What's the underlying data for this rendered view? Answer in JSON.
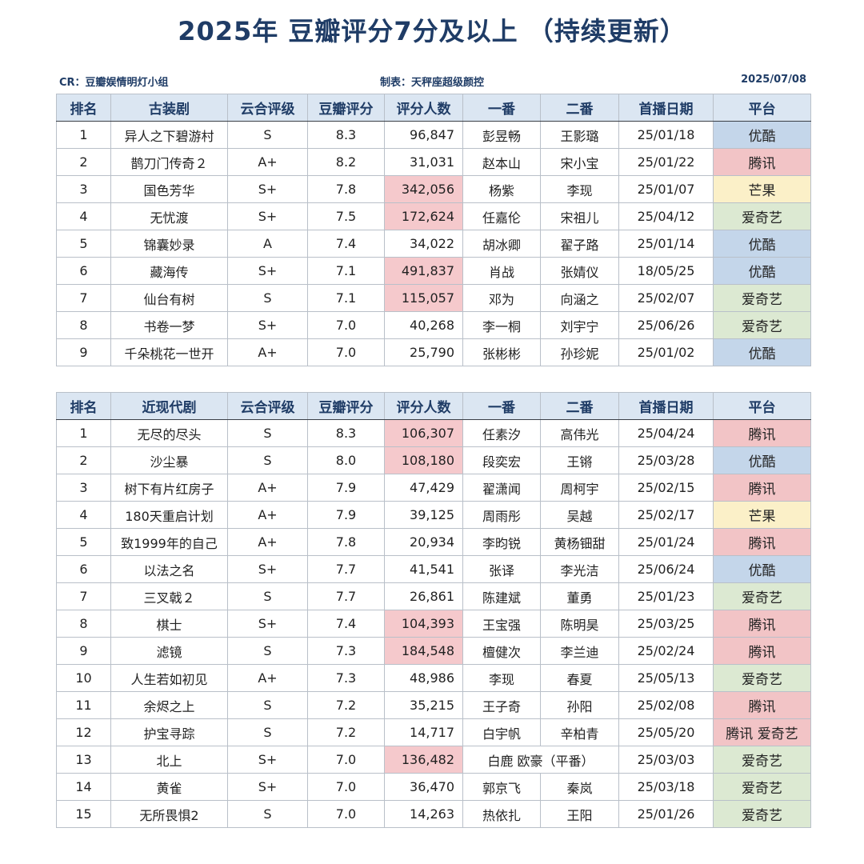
{
  "title": "2025年 豆瓣评分7分及以上 （持续更新）",
  "meta": {
    "credit": "CR：豆瓣娱情明灯小组",
    "maker": "制表：天秤座超级颜控",
    "date": "2025/07/08"
  },
  "colors": {
    "title": "#1f3c66",
    "header_bg": "#dbe6f2",
    "highlight_count": "#f5c9cc",
    "youku": "#c4d6ea",
    "tencent": "#f2c4c6",
    "mango": "#fbf0c8",
    "iqiyi": "#dce9d2"
  },
  "tables": [
    {
      "headers": [
        "排名",
        "古装剧",
        "云合评级",
        "豆瓣评分",
        "评分人数",
        "一番",
        "二番",
        "首播日期",
        "平台"
      ],
      "rows": [
        {
          "rank": "1",
          "title": "异人之下碧游村",
          "grade": "S",
          "score": "8.3",
          "count": "96,847",
          "hl": false,
          "lead1": "彭昱畅",
          "lead2": "王影璐",
          "date": "25/01/18",
          "platform": "优酷",
          "pclass": "p-youku"
        },
        {
          "rank": "2",
          "title": "鹊刀门传奇２",
          "grade": "A+",
          "score": "8.2",
          "count": "31,031",
          "hl": false,
          "lead1": "赵本山",
          "lead2": "宋小宝",
          "date": "25/01/22",
          "platform": "腾讯",
          "pclass": "p-tencent"
        },
        {
          "rank": "3",
          "title": "国色芳华",
          "grade": "S+",
          "score": "7.8",
          "count": "342,056",
          "hl": true,
          "lead1": "杨紫",
          "lead2": "李现",
          "date": "25/01/07",
          "platform": "芒果",
          "pclass": "p-mango"
        },
        {
          "rank": "4",
          "title": "无忧渡",
          "grade": "S+",
          "score": "7.5",
          "count": "172,624",
          "hl": true,
          "lead1": "任嘉伦",
          "lead2": "宋祖儿",
          "date": "25/04/12",
          "platform": "爱奇艺",
          "pclass": "p-iqiyi"
        },
        {
          "rank": "5",
          "title": "锦囊妙录",
          "grade": "A",
          "score": "7.4",
          "count": "34,022",
          "hl": false,
          "lead1": "胡冰卿",
          "lead2": "翟子路",
          "date": "25/01/14",
          "platform": "优酷",
          "pclass": "p-youku"
        },
        {
          "rank": "6",
          "title": "藏海传",
          "grade": "S+",
          "score": "7.1",
          "count": "491,837",
          "hl": true,
          "lead1": "肖战",
          "lead2": "张婧仪",
          "date": "18/05/25",
          "platform": "优酷",
          "pclass": "p-youku"
        },
        {
          "rank": "7",
          "title": "仙台有树",
          "grade": "S",
          "score": "7.1",
          "count": "115,057",
          "hl": true,
          "lead1": "邓为",
          "lead2": "向涵之",
          "date": "25/02/07",
          "platform": "爱奇艺",
          "pclass": "p-iqiyi"
        },
        {
          "rank": "8",
          "title": "书卷一梦",
          "grade": "S+",
          "score": "7.0",
          "count": "40,268",
          "hl": false,
          "lead1": "李一桐",
          "lead2": "刘宇宁",
          "date": "25/06/26",
          "platform": "爱奇艺",
          "pclass": "p-iqiyi"
        },
        {
          "rank": "9",
          "title": "千朵桃花一世开",
          "grade": "A+",
          "score": "7.0",
          "count": "25,790",
          "hl": false,
          "lead1": "张彬彬",
          "lead2": "孙珍妮",
          "date": "25/01/02",
          "platform": "优酷",
          "pclass": "p-youku"
        }
      ]
    },
    {
      "headers": [
        "排名",
        "近现代剧",
        "云合评级",
        "豆瓣评分",
        "评分人数",
        "一番",
        "二番",
        "首播日期",
        "平台"
      ],
      "rows": [
        {
          "rank": "1",
          "title": "无尽的尽头",
          "grade": "S",
          "score": "8.3",
          "count": "106,307",
          "hl": true,
          "lead1": "任素汐",
          "lead2": "高伟光",
          "date": "25/04/24",
          "platform": "腾讯",
          "pclass": "p-tencent"
        },
        {
          "rank": "2",
          "title": "沙尘暴",
          "grade": "S",
          "score": "8.0",
          "count": "108,180",
          "hl": true,
          "lead1": "段奕宏",
          "lead2": "王锵",
          "date": "25/03/28",
          "platform": "优酷",
          "pclass": "p-youku"
        },
        {
          "rank": "3",
          "title": "树下有片红房子",
          "grade": "A+",
          "score": "7.9",
          "count": "47,429",
          "hl": false,
          "lead1": "翟潇闻",
          "lead2": "周柯宇",
          "date": "25/02/15",
          "platform": "腾讯",
          "pclass": "p-tencent"
        },
        {
          "rank": "4",
          "title": "180天重启计划",
          "grade": "A+",
          "score": "7.9",
          "count": "39,125",
          "hl": false,
          "lead1": "周雨彤",
          "lead2": "吴越",
          "date": "25/02/17",
          "platform": "芒果",
          "pclass": "p-mango"
        },
        {
          "rank": "5",
          "title": "致1999年的自己",
          "grade": "A+",
          "score": "7.8",
          "count": "20,934",
          "hl": false,
          "lead1": "李昀锐",
          "lead2": "黄杨钿甜",
          "date": "25/01/24",
          "platform": "腾讯",
          "pclass": "p-tencent"
        },
        {
          "rank": "6",
          "title": "以法之名",
          "grade": "S+",
          "score": "7.7",
          "count": "41,541",
          "hl": false,
          "lead1": "张译",
          "lead2": "李光洁",
          "date": "25/06/24",
          "platform": "优酷",
          "pclass": "p-youku"
        },
        {
          "rank": "7",
          "title": "三叉戟２",
          "grade": "S",
          "score": "7.7",
          "count": "26,861",
          "hl": false,
          "lead1": "陈建斌",
          "lead2": "董勇",
          "date": "25/01/23",
          "platform": "爱奇艺",
          "pclass": "p-iqiyi"
        },
        {
          "rank": "8",
          "title": "棋士",
          "grade": "S+",
          "score": "7.4",
          "count": "104,393",
          "hl": true,
          "lead1": "王宝强",
          "lead2": "陈明昊",
          "date": "25/03/25",
          "platform": "腾讯",
          "pclass": "p-tencent"
        },
        {
          "rank": "9",
          "title": "滤镜",
          "grade": "S",
          "score": "7.3",
          "count": "184,548",
          "hl": true,
          "lead1": "檀健次",
          "lead2": "李兰迪",
          "date": "25/02/24",
          "platform": "腾讯",
          "pclass": "p-tencent"
        },
        {
          "rank": "10",
          "title": "人生若如初见",
          "grade": "A+",
          "score": "7.3",
          "count": "48,986",
          "hl": false,
          "lead1": "李现",
          "lead2": "春夏",
          "date": "25/05/13",
          "platform": "爱奇艺",
          "pclass": "p-iqiyi"
        },
        {
          "rank": "11",
          "title": "余烬之上",
          "grade": "S",
          "score": "7.2",
          "count": "35,215",
          "hl": false,
          "lead1": "王子奇",
          "lead2": "孙阳",
          "date": "25/02/08",
          "platform": "腾讯",
          "pclass": "p-tencent"
        },
        {
          "rank": "12",
          "title": "护宝寻踪",
          "grade": "S",
          "score": "7.2",
          "count": "14,717",
          "hl": false,
          "lead1": "白宇帆",
          "lead2": "辛柏青",
          "date": "25/05/20",
          "platform": "腾讯 爱奇艺",
          "pclass": "p-multi"
        },
        {
          "rank": "13",
          "title": "北上",
          "grade": "S+",
          "score": "7.0",
          "count": "136,482",
          "hl": true,
          "lead12": "白鹿 欧豪（平番）",
          "date": "25/03/03",
          "platform": "爱奇艺",
          "pclass": "p-iqiyi"
        },
        {
          "rank": "14",
          "title": "黄雀",
          "grade": "S+",
          "score": "7.0",
          "count": "36,470",
          "hl": false,
          "lead1": "郭京飞",
          "lead2": "秦岚",
          "date": "25/03/18",
          "platform": "爱奇艺",
          "pclass": "p-iqiyi"
        },
        {
          "rank": "15",
          "title": "无所畏惧2",
          "grade": "S",
          "score": "7.0",
          "count": "14,263",
          "hl": false,
          "lead1": "热依扎",
          "lead2": "王阳",
          "date": "25/01/26",
          "platform": "爱奇艺",
          "pclass": "p-iqiyi"
        }
      ]
    }
  ]
}
